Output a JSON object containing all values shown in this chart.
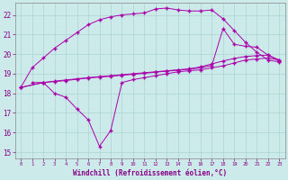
{
  "xlabel": "Windchill (Refroidissement éolien,°C)",
  "xlim": [
    -0.5,
    23.5
  ],
  "ylim": [
    14.7,
    22.6
  ],
  "yticks": [
    15,
    16,
    17,
    18,
    19,
    20,
    21,
    22
  ],
  "xticks": [
    0,
    1,
    2,
    3,
    4,
    5,
    6,
    7,
    8,
    9,
    10,
    11,
    12,
    13,
    14,
    15,
    16,
    17,
    18,
    19,
    20,
    21,
    22,
    23
  ],
  "bg_color": "#cceaea",
  "grid_color": "#aad4d4",
  "line_color": "#aa00aa",
  "line1_x": [
    0,
    1,
    2,
    3,
    4,
    5,
    6,
    7,
    8,
    9,
    10,
    11,
    12,
    13,
    14,
    15,
    16,
    17,
    18,
    19,
    20,
    21,
    22,
    23
  ],
  "line1_y": [
    18.3,
    19.3,
    19.8,
    20.3,
    20.7,
    21.1,
    21.5,
    21.75,
    21.9,
    22.0,
    22.05,
    22.1,
    22.3,
    22.35,
    22.25,
    22.2,
    22.2,
    22.25,
    21.8,
    21.2,
    20.6,
    20.1,
    19.7,
    19.6
  ],
  "line2_x": [
    0,
    2,
    3,
    4,
    5,
    6,
    7,
    8,
    9,
    10,
    11,
    12,
    13,
    14,
    15,
    16,
    17,
    18,
    19,
    20,
    21,
    22,
    23
  ],
  "line2_y": [
    18.3,
    18.55,
    18.6,
    18.65,
    18.72,
    18.78,
    18.83,
    18.87,
    18.92,
    18.97,
    19.02,
    19.08,
    19.13,
    19.18,
    19.23,
    19.3,
    19.42,
    21.3,
    20.5,
    20.4,
    20.35,
    19.95,
    19.65
  ],
  "line3_x": [
    0,
    2,
    3,
    4,
    5,
    6,
    7,
    8,
    9,
    10,
    11,
    12,
    13,
    14,
    15,
    16,
    17,
    18,
    19,
    20,
    21,
    22,
    23
  ],
  "line3_y": [
    18.3,
    18.55,
    18.62,
    18.68,
    18.74,
    18.8,
    18.85,
    18.9,
    18.95,
    19.0,
    19.05,
    19.1,
    19.15,
    19.2,
    19.25,
    19.35,
    19.5,
    19.65,
    19.78,
    19.88,
    19.92,
    19.95,
    19.7
  ],
  "line4_x": [
    1,
    2,
    3,
    4,
    5,
    6,
    7,
    8,
    9,
    10,
    11,
    12,
    13,
    14,
    15,
    16,
    17,
    18,
    19,
    20,
    21,
    22,
    23
  ],
  "line4_y": [
    18.55,
    18.55,
    18.0,
    17.8,
    17.2,
    16.65,
    15.3,
    16.1,
    18.55,
    18.7,
    18.8,
    18.9,
    19.0,
    19.1,
    19.15,
    19.2,
    19.3,
    19.4,
    19.55,
    19.7,
    19.75,
    19.8,
    19.7
  ],
  "marker": "+"
}
